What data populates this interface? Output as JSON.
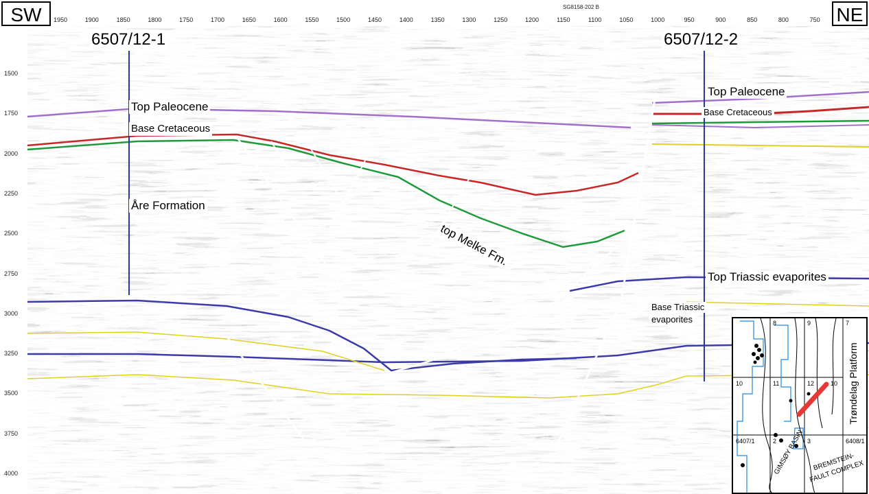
{
  "corners": {
    "left": "SW",
    "right": "NE"
  },
  "survey_label": "SG8158-202 B",
  "wells": [
    {
      "name": "6507/12-1"
    },
    {
      "name": "6507/12-2"
    }
  ],
  "horizon_labels": {
    "top_paleocene_left": "Top Paleocene",
    "base_cretaceous_left": "Base Cretaceous",
    "are_formation": "Åre Formation",
    "top_melke": "top Melke Fm.",
    "top_paleocene_right": "Top Paleocene",
    "base_cretaceous_right": "Base Cretaceous",
    "top_triassic": "Top Triassic evaporites",
    "base_triassic_1": "Base Triassic",
    "base_triassic_2": "evaporites"
  },
  "axes": {
    "x_ticks": [
      "1950",
      "1900",
      "1850",
      "1800",
      "1750",
      "1700",
      "1650",
      "1600",
      "1550",
      "1500",
      "1450",
      "1400",
      "1350",
      "1300",
      "1250",
      "1200",
      "1150",
      "1100",
      "1050",
      "1000",
      "950",
      "900",
      "850",
      "800",
      "750"
    ],
    "y_ticks": [
      "1500",
      "1750",
      "2000",
      "2250",
      "2500",
      "2750",
      "3000",
      "3250",
      "3500",
      "3750",
      "4000"
    ]
  },
  "inset_map": {
    "platform_label": "Trøndelag Platform",
    "basin_label": "GIMSØY BASIN",
    "fault_label_1": "BREMSTEIN-",
    "fault_label_2": "FAULT COMPLEX",
    "block_labels": [
      "8",
      "9",
      "7",
      "10",
      "11",
      "12",
      "10",
      "6407/1",
      "2",
      "3",
      "6408/1"
    ]
  },
  "colors": {
    "top_paleocene": "#a070c8",
    "base_cretaceous": "#c62828",
    "top_melke": "#1e9a3c",
    "triassic": "#3a3aa8",
    "yellow": "#e0d020",
    "faults": "#ffffff",
    "wells": "#2a3a9a",
    "traverse": "#e53935"
  }
}
